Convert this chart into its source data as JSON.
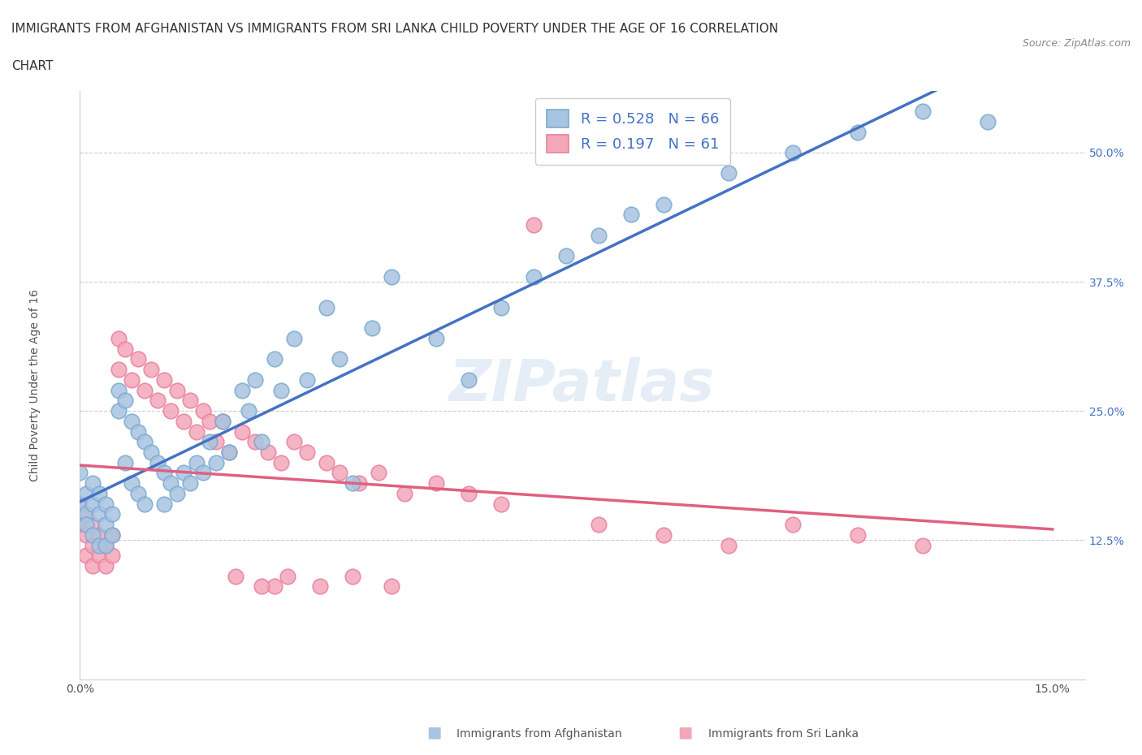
{
  "title_line1": "IMMIGRANTS FROM AFGHANISTAN VS IMMIGRANTS FROM SRI LANKA CHILD POVERTY UNDER THE AGE OF 16 CORRELATION",
  "title_line2": "CHART",
  "source": "Source: ZipAtlas.com",
  "xlabel": "",
  "ylabel": "Child Poverty Under the Age of 16",
  "xlim": [
    0.0,
    0.15
  ],
  "ylim": [
    0.0,
    0.55
  ],
  "xticks": [
    0.0,
    0.025,
    0.05,
    0.075,
    0.1,
    0.125,
    0.15
  ],
  "xticklabels": [
    "0.0%",
    "",
    "",
    "",
    "",
    "",
    "15.0%"
  ],
  "yticks": [
    0.0,
    0.125,
    0.25,
    0.375,
    0.5
  ],
  "yticklabels": [
    "",
    "12.5%",
    "25.0%",
    "37.5%",
    "50.0%"
  ],
  "afghanistan_color": "#a8c4e0",
  "srilanka_color": "#f4a7b9",
  "afghanistan_edge": "#7aaad0",
  "srilanka_edge": "#e880a0",
  "afghanistan_line_color": "#4472c4",
  "srilanka_line_color": "#e06080",
  "legend_R1": "R = 0.528",
  "legend_N1": "N = 66",
  "legend_R2": "R = 0.197",
  "legend_N2": "N = 61",
  "watermark": "ZIPatlas",
  "afghanistan_x": [
    0.0,
    0.0,
    0.001,
    0.001,
    0.001,
    0.002,
    0.002,
    0.002,
    0.003,
    0.003,
    0.003,
    0.004,
    0.004,
    0.004,
    0.005,
    0.005,
    0.006,
    0.006,
    0.007,
    0.007,
    0.008,
    0.008,
    0.009,
    0.009,
    0.01,
    0.01,
    0.011,
    0.012,
    0.013,
    0.013,
    0.014,
    0.015,
    0.016,
    0.017,
    0.018,
    0.019,
    0.02,
    0.021,
    0.022,
    0.023,
    0.025,
    0.026,
    0.027,
    0.028,
    0.03,
    0.031,
    0.033,
    0.035,
    0.038,
    0.04,
    0.042,
    0.045,
    0.048,
    0.055,
    0.06,
    0.065,
    0.07,
    0.075,
    0.08,
    0.085,
    0.09,
    0.1,
    0.11,
    0.12,
    0.13,
    0.14
  ],
  "afghanistan_y": [
    0.19,
    0.16,
    0.17,
    0.15,
    0.14,
    0.18,
    0.16,
    0.13,
    0.17,
    0.15,
    0.12,
    0.16,
    0.14,
    0.12,
    0.15,
    0.13,
    0.27,
    0.25,
    0.26,
    0.2,
    0.24,
    0.18,
    0.23,
    0.17,
    0.22,
    0.16,
    0.21,
    0.2,
    0.19,
    0.16,
    0.18,
    0.17,
    0.19,
    0.18,
    0.2,
    0.19,
    0.22,
    0.2,
    0.24,
    0.21,
    0.27,
    0.25,
    0.28,
    0.22,
    0.3,
    0.27,
    0.32,
    0.28,
    0.35,
    0.3,
    0.18,
    0.33,
    0.38,
    0.32,
    0.28,
    0.35,
    0.38,
    0.4,
    0.42,
    0.44,
    0.45,
    0.48,
    0.5,
    0.52,
    0.54,
    0.53
  ],
  "srilanka_x": [
    0.0,
    0.0,
    0.001,
    0.001,
    0.001,
    0.002,
    0.002,
    0.002,
    0.003,
    0.003,
    0.004,
    0.004,
    0.005,
    0.005,
    0.006,
    0.006,
    0.007,
    0.008,
    0.009,
    0.01,
    0.011,
    0.012,
    0.013,
    0.014,
    0.015,
    0.016,
    0.017,
    0.018,
    0.019,
    0.02,
    0.021,
    0.022,
    0.023,
    0.025,
    0.027,
    0.029,
    0.031,
    0.033,
    0.035,
    0.038,
    0.04,
    0.043,
    0.046,
    0.05,
    0.055,
    0.06,
    0.065,
    0.07,
    0.08,
    0.09,
    0.1,
    0.11,
    0.12,
    0.13,
    0.03,
    0.024,
    0.028,
    0.032,
    0.037,
    0.042,
    0.048
  ],
  "srilanka_y": [
    0.16,
    0.14,
    0.15,
    0.13,
    0.11,
    0.14,
    0.12,
    0.1,
    0.13,
    0.11,
    0.12,
    0.1,
    0.13,
    0.11,
    0.32,
    0.29,
    0.31,
    0.28,
    0.3,
    0.27,
    0.29,
    0.26,
    0.28,
    0.25,
    0.27,
    0.24,
    0.26,
    0.23,
    0.25,
    0.24,
    0.22,
    0.24,
    0.21,
    0.23,
    0.22,
    0.21,
    0.2,
    0.22,
    0.21,
    0.2,
    0.19,
    0.18,
    0.19,
    0.17,
    0.18,
    0.17,
    0.16,
    0.43,
    0.14,
    0.13,
    0.12,
    0.14,
    0.13,
    0.12,
    0.08,
    0.09,
    0.08,
    0.09,
    0.08,
    0.09,
    0.08
  ]
}
